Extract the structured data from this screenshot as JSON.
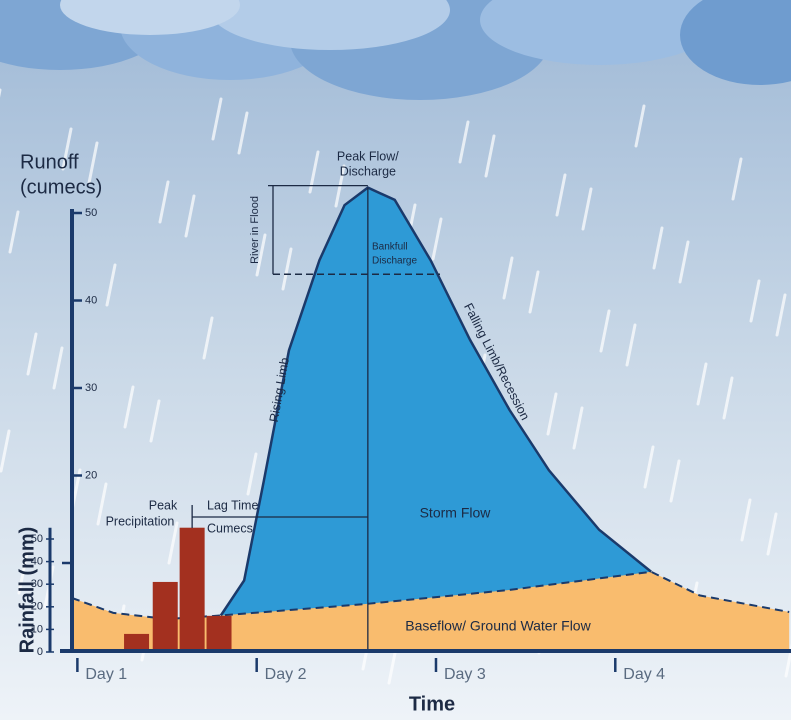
{
  "chart_data": [
    {
      "type": "area",
      "y_label": [
        "Runoff",
        "(cumecs)"
      ],
      "x_label": "Time",
      "xlim": [
        0.97,
        4.98
      ],
      "xticks": [
        {
          "value": 1,
          "label": "Day 1"
        },
        {
          "value": 2,
          "label": "Day 2"
        },
        {
          "value": 3,
          "label": "Day 3"
        },
        {
          "value": 4,
          "label": "Day 4"
        }
      ],
      "ylim": [
        0,
        50
      ],
      "yticks": [
        20,
        30,
        40,
        50
      ],
      "bankfull": 43,
      "series": [
        {
          "name": "Storm Flow",
          "color": "#2e9ad6",
          "x": [
            1.8,
            1.93,
            2.04,
            2.18,
            2.35,
            2.49,
            2.62,
            2.77,
            2.97,
            3.19,
            3.41,
            3.63,
            3.91,
            4.2
          ],
          "values": [
            4.0,
            8.0,
            19.4,
            34.3,
            44.6,
            50.9,
            52.9,
            51.5,
            44.6,
            35.5,
            27.5,
            20.6,
            13.8,
            9.0
          ]
        },
        {
          "name": "Baseflow/ Ground Water Flow",
          "color": "#f9bc6e",
          "x": [
            0.97,
            1.2,
            1.5,
            1.8,
            2.6,
            3.4,
            4.2,
            4.47,
            4.97
          ],
          "values": [
            6.0,
            4.3,
            3.6,
            4.0,
            5.3,
            6.9,
            9.0,
            6.3,
            4.4
          ]
        }
      ],
      "annotations": {
        "peak_flow": [
          "Peak Flow/",
          "Discharge"
        ],
        "river_in_flood": "River in Flood",
        "bankfull_discharge": [
          "Bankfull",
          "Discharge"
        ],
        "rising_limb": "Rising Limb",
        "falling_limb": "Falling Limb/Recession",
        "peak_precipitation": [
          "Peak",
          "Precipitation"
        ],
        "lag_time": "Lag Time",
        "cumecs": "Cumecs"
      }
    },
    {
      "type": "bar",
      "y_label": "Rainfall (mm)",
      "color": "#a3301f",
      "x": [
        1.33,
        1.49,
        1.64,
        1.79
      ],
      "values": [
        8,
        31,
        55,
        16
      ],
      "ylim": [
        0,
        55
      ],
      "yticks": [
        0,
        10,
        20,
        30,
        40,
        50
      ]
    }
  ]
}
